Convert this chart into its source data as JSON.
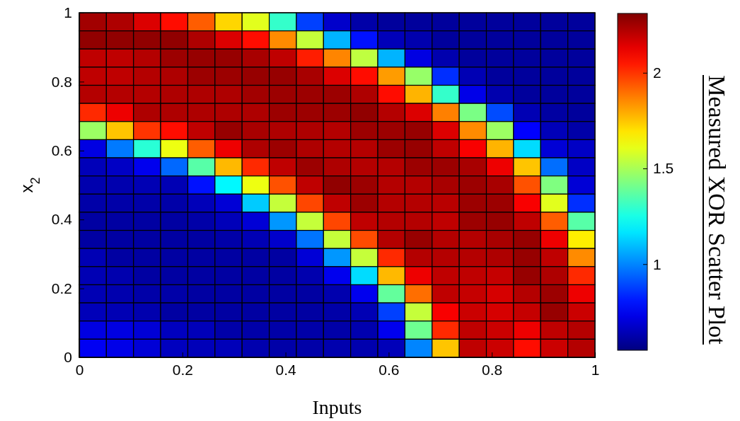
{
  "chart_data": {
    "type": "heatmap",
    "title": "Measured XOR Scatter Plot",
    "xlabel": "Inputs",
    "ylabel": "x$_{2}$",
    "xlim": [
      0,
      1
    ],
    "ylim": [
      0,
      1
    ],
    "xticks": [
      0,
      0.2,
      0.4,
      0.6,
      0.8,
      1
    ],
    "yticks": [
      0,
      0.2,
      0.4,
      0.6,
      0.8,
      1
    ],
    "clim": [
      0.55,
      2.31
    ],
    "cticks": [
      1,
      1.5,
      2
    ],
    "grid": false,
    "cells": [
      [
        2.25,
        2.23,
        2.15,
        2.07,
        1.93,
        1.72,
        1.6,
        1.3,
        0.88,
        0.68,
        0.62,
        0.6,
        0.6,
        0.6,
        0.6,
        0.6,
        0.6,
        0.6,
        0.6
      ],
      [
        2.28,
        2.28,
        2.28,
        2.28,
        2.23,
        2.15,
        2.07,
        1.85,
        1.55,
        1.08,
        0.8,
        0.65,
        0.63,
        0.6,
        0.6,
        0.6,
        0.6,
        0.6,
        0.6
      ],
      [
        2.2,
        2.2,
        2.22,
        2.26,
        2.27,
        2.27,
        2.24,
        2.2,
        2.04,
        1.86,
        1.54,
        1.08,
        0.72,
        0.63,
        0.6,
        0.6,
        0.6,
        0.6,
        0.6
      ],
      [
        2.2,
        2.2,
        2.22,
        2.23,
        2.26,
        2.26,
        2.27,
        2.27,
        2.24,
        2.15,
        2.07,
        1.82,
        1.47,
        0.85,
        0.64,
        0.6,
        0.6,
        0.6,
        0.6
      ],
      [
        2.22,
        2.22,
        2.22,
        2.23,
        2.23,
        2.23,
        2.25,
        2.26,
        2.26,
        2.26,
        2.23,
        2.07,
        1.78,
        1.3,
        0.73,
        0.63,
        0.6,
        0.6,
        0.6
      ],
      [
        2.02,
        2.12,
        2.23,
        2.23,
        2.23,
        2.23,
        2.23,
        2.26,
        2.26,
        2.26,
        2.28,
        2.22,
        2.15,
        1.87,
        1.42,
        0.9,
        0.64,
        0.61,
        0.6
      ],
      [
        1.48,
        1.75,
        2.0,
        2.07,
        2.2,
        2.27,
        2.24,
        2.23,
        2.23,
        2.22,
        2.26,
        2.26,
        2.27,
        2.15,
        1.85,
        1.48,
        0.77,
        0.65,
        0.62
      ],
      [
        0.72,
        0.98,
        1.28,
        1.62,
        1.93,
        2.12,
        2.23,
        2.26,
        2.23,
        2.22,
        2.22,
        2.26,
        2.27,
        2.2,
        2.1,
        1.78,
        1.15,
        0.7,
        0.67
      ],
      [
        0.65,
        0.67,
        0.74,
        0.95,
        1.36,
        1.77,
        2.02,
        2.2,
        2.26,
        2.23,
        2.22,
        2.22,
        2.26,
        2.26,
        2.24,
        2.12,
        1.75,
        0.96,
        0.67
      ],
      [
        0.63,
        0.63,
        0.64,
        0.64,
        0.8,
        1.2,
        1.62,
        1.95,
        2.2,
        2.28,
        2.26,
        2.22,
        2.22,
        2.24,
        2.26,
        2.24,
        1.95,
        1.43,
        0.7
      ],
      [
        0.62,
        0.62,
        0.62,
        0.62,
        0.65,
        0.7,
        1.12,
        1.55,
        1.97,
        2.2,
        2.26,
        2.22,
        2.22,
        2.21,
        2.26,
        2.26,
        2.1,
        1.6,
        0.85
      ],
      [
        0.61,
        0.61,
        0.61,
        0.61,
        0.62,
        0.65,
        0.7,
        1.03,
        1.55,
        1.97,
        2.2,
        2.22,
        2.22,
        2.2,
        2.26,
        2.27,
        2.2,
        1.93,
        1.36
      ],
      [
        0.61,
        0.61,
        0.61,
        0.61,
        0.61,
        0.62,
        0.64,
        0.68,
        0.97,
        1.55,
        1.96,
        2.22,
        2.27,
        2.22,
        2.22,
        2.24,
        2.27,
        2.12,
        1.68
      ],
      [
        0.64,
        0.61,
        0.61,
        0.61,
        0.61,
        0.61,
        0.61,
        0.61,
        0.7,
        1.03,
        1.55,
        2.02,
        2.22,
        2.22,
        2.22,
        2.23,
        2.27,
        2.2,
        1.85
      ],
      [
        0.64,
        0.63,
        0.61,
        0.61,
        0.61,
        0.61,
        0.61,
        0.61,
        0.63,
        0.74,
        1.15,
        1.77,
        2.12,
        2.2,
        2.2,
        2.19,
        2.27,
        2.23,
        2.02
      ],
      [
        0.64,
        0.63,
        0.62,
        0.62,
        0.61,
        0.61,
        0.61,
        0.61,
        0.61,
        0.63,
        0.74,
        1.38,
        1.9,
        2.2,
        2.19,
        2.16,
        2.22,
        2.26,
        2.12
      ],
      [
        0.65,
        0.64,
        0.63,
        0.61,
        0.61,
        0.61,
        0.61,
        0.61,
        0.61,
        0.62,
        0.64,
        0.88,
        1.55,
        2.1,
        2.18,
        2.16,
        2.19,
        2.27,
        2.18
      ],
      [
        0.72,
        0.72,
        0.7,
        0.66,
        0.65,
        0.62,
        0.62,
        0.62,
        0.62,
        0.62,
        0.63,
        0.74,
        1.4,
        2.02,
        2.2,
        2.18,
        2.12,
        2.2,
        2.22
      ],
      [
        0.75,
        0.73,
        0.7,
        0.66,
        0.65,
        0.65,
        0.63,
        0.62,
        0.62,
        0.63,
        0.63,
        0.65,
        1.0,
        1.75,
        2.2,
        2.18,
        2.07,
        2.18,
        2.22
      ]
    ]
  }
}
